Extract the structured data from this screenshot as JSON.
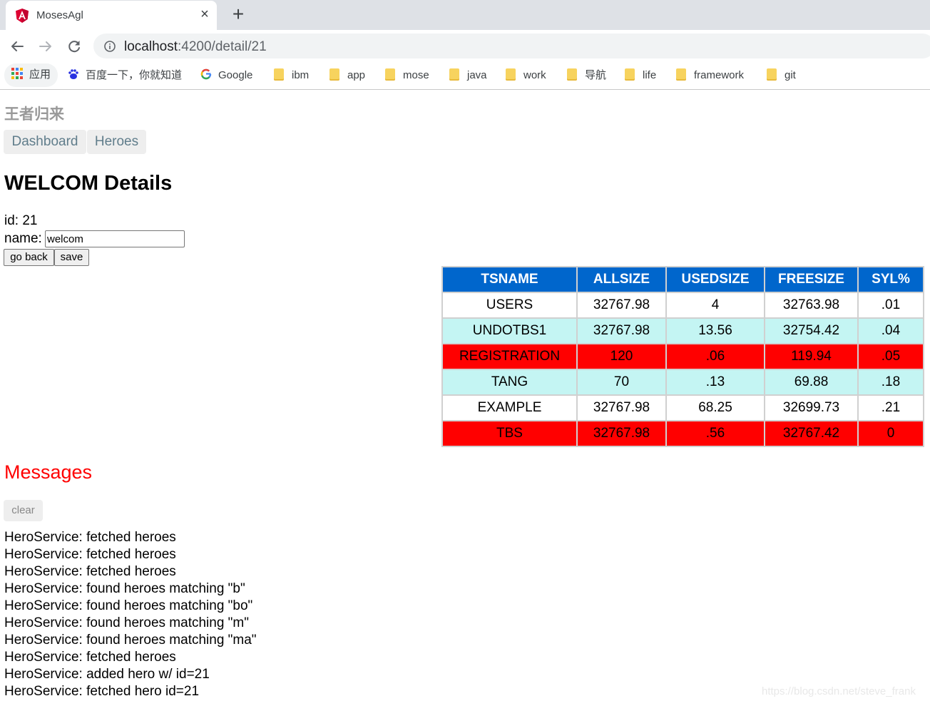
{
  "browser": {
    "tab_title": "MosesAgl",
    "tab_close": "×",
    "new_tab": "+",
    "url_host": "localhost",
    "url_path": ":4200/detail/21",
    "bookmarks": {
      "apps": "应用",
      "baidu": "百度一下，你就知道",
      "google": "Google",
      "folders": [
        "ibm",
        "app",
        "mose",
        "java",
        "work",
        "导航",
        "life",
        "framework",
        "git"
      ]
    }
  },
  "app": {
    "title": "王者归来",
    "nav": {
      "dashboard": "Dashboard",
      "heroes": "Heroes"
    }
  },
  "detail": {
    "heading": "WELCOM Details",
    "id_line": "id: 21",
    "name_label": "name:",
    "name_value": "welcom",
    "go_back": "go back",
    "save": "save"
  },
  "tablespace": {
    "headers": [
      "TSNAME",
      "ALLSIZE",
      "USEDSIZE",
      "FREESIZE",
      "SYL%"
    ],
    "rows": [
      {
        "style": "white",
        "cells": [
          "USERS",
          "32767.98",
          "4",
          "32763.98",
          ".01"
        ]
      },
      {
        "style": "cyan",
        "cells": [
          "UNDOTBS1",
          "32767.98",
          "13.56",
          "32754.42",
          ".04"
        ]
      },
      {
        "style": "red",
        "cells": [
          "REGISTRATION",
          "120",
          ".06",
          "119.94",
          ".05"
        ]
      },
      {
        "style": "cyan",
        "cells": [
          "TANG",
          "70",
          ".13",
          "69.88",
          ".18"
        ]
      },
      {
        "style": "white",
        "cells": [
          "EXAMPLE",
          "32767.98",
          "68.25",
          "32699.73",
          ".21"
        ]
      },
      {
        "style": "red",
        "cells": [
          "TBS",
          "32767.98",
          ".56",
          "32767.42",
          "0"
        ]
      }
    ],
    "colors": {
      "header": "#0066cc",
      "cyan": "#c4f5f3",
      "red": "#ff0000"
    }
  },
  "messages": {
    "title": "Messages",
    "clear": "clear",
    "items": [
      "HeroService: fetched heroes",
      "HeroService: fetched heroes",
      "HeroService: fetched heroes",
      "HeroService: found heroes matching \"b\"",
      "HeroService: found heroes matching \"bo\"",
      "HeroService: found heroes matching \"m\"",
      "HeroService: found heroes matching \"ma\"",
      "HeroService: fetched heroes",
      "HeroService: added hero w/ id=21",
      "HeroService: fetched hero id=21"
    ]
  },
  "watermark": "https://blog.csdn.net/steve_frank"
}
